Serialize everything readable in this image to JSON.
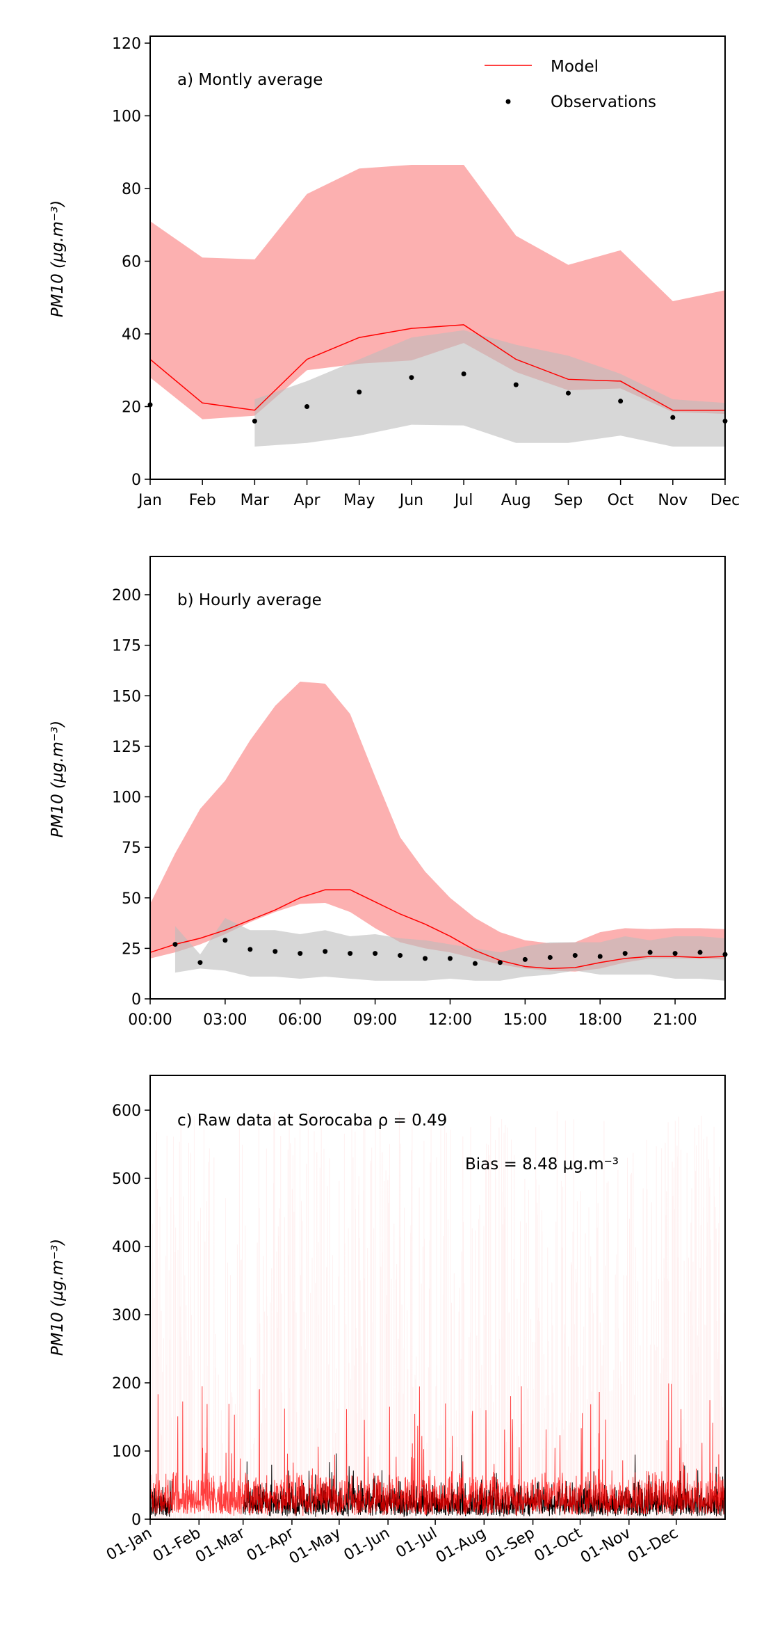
{
  "chart_data": [
    {
      "type": "line",
      "annotation": "a) Montly average",
      "ylabel": "PM10 (µg.m⁻³)",
      "ylim": [
        0,
        120
      ],
      "yticks": [
        0,
        20,
        40,
        60,
        80,
        100,
        120
      ],
      "categories": [
        "Jan",
        "Feb",
        "Mar",
        "Apr",
        "May",
        "Jun",
        "Jul",
        "Aug",
        "Sep",
        "Oct",
        "Nov",
        "Dec"
      ],
      "legend": {
        "position": "top-right",
        "entries": [
          "Model",
          "Observations"
        ]
      },
      "model": [
        33,
        21,
        19,
        33,
        39,
        41.5,
        42.5,
        33,
        27.5,
        27,
        19,
        19
      ],
      "model_band_upper": [
        71,
        61,
        60.5,
        78.5,
        85.5,
        86.5,
        86.5,
        67,
        59,
        63,
        49,
        52
      ],
      "model_band_lower": [
        28,
        16.5,
        17.5,
        30,
        31.8,
        32.7,
        37.5,
        29.5,
        24.5,
        25,
        18.5,
        18
      ],
      "observations": [
        20.5,
        null,
        16,
        20,
        24,
        28,
        29,
        26,
        23.7,
        21.5,
        17,
        16
      ],
      "obs_band_upper": [
        null,
        null,
        22,
        27,
        33,
        39,
        41,
        37,
        34,
        29,
        22,
        21
      ],
      "obs_band_lower": [
        null,
        null,
        9,
        10,
        12,
        15,
        14.8,
        10,
        10,
        12,
        9,
        9
      ],
      "colors": {
        "model": "#ff0000",
        "model_band": "#fdb0b0",
        "obs": "#000000",
        "obs_band": "#d9d9d9"
      }
    },
    {
      "type": "line",
      "annotation": "b) Hourly average",
      "ylabel": "PM10 (µg.m⁻³)",
      "ylim": [
        0,
        220
      ],
      "yticks": [
        0,
        25,
        50,
        75,
        100,
        125,
        150,
        175,
        200
      ],
      "xlim": [
        0,
        23
      ],
      "xticks": [
        0,
        3,
        6,
        9,
        12,
        15,
        18,
        21
      ],
      "xticklabels": [
        "00:00",
        "03:00",
        "06:00",
        "09:00",
        "12:00",
        "15:00",
        "18:00",
        "21:00"
      ],
      "hours": [
        0,
        1,
        2,
        3,
        4,
        5,
        6,
        7,
        8,
        9,
        10,
        11,
        12,
        13,
        14,
        15,
        16,
        17,
        18,
        19,
        20,
        21,
        22,
        23
      ],
      "model": [
        23,
        27,
        30,
        34,
        39,
        44,
        50,
        54,
        54,
        48,
        42,
        37,
        31,
        24,
        19,
        16,
        15,
        15.5,
        18,
        20,
        21,
        21,
        20.5,
        21
      ],
      "model_band_upper": [
        47,
        72,
        94,
        108,
        128,
        145,
        157,
        156,
        141,
        110,
        80,
        63,
        50,
        40,
        33,
        29,
        27.5,
        28,
        33,
        35,
        34.5,
        35,
        35,
        34.5
      ],
      "model_band_lower": [
        20,
        23,
        27,
        32,
        38,
        43,
        47,
        47.5,
        43,
        35,
        28,
        25,
        23,
        20,
        17,
        15,
        14,
        13.5,
        15,
        18,
        20,
        20,
        20,
        19.5
      ],
      "observations": [
        null,
        27,
        18,
        29,
        24.5,
        23.5,
        22.5,
        23.5,
        22.5,
        22.5,
        21.5,
        20,
        20,
        17.5,
        18,
        19.5,
        20.5,
        21.5,
        21,
        22.5,
        23,
        22.5,
        23,
        22
      ],
      "obs_band_upper": [
        null,
        36,
        22,
        40,
        34,
        34,
        32,
        34,
        31,
        32,
        30,
        29,
        27,
        25,
        23,
        26,
        28,
        28,
        28,
        31,
        29,
        31,
        31,
        30
      ],
      "obs_band_lower": [
        null,
        13,
        15,
        14,
        11,
        11,
        10,
        11,
        10,
        9,
        9,
        9,
        10,
        9,
        9,
        11,
        12,
        14,
        12,
        12,
        12,
        10,
        10,
        9
      ]
    },
    {
      "type": "line",
      "annotation": "c) Raw data at Sorocaba ρ = 0.49",
      "bias_label": "Bias = 8.48 µg.m⁻³",
      "ylabel": "PM10 (µg.m⁻³)",
      "ylim": [
        0,
        650
      ],
      "yticks": [
        0,
        100,
        200,
        300,
        400,
        500,
        600
      ],
      "xticklabels": [
        "01-Jan",
        "01-Feb",
        "01-Mar",
        "01-Apr",
        "01-May",
        "01-Jun",
        "01-Jul",
        "01-Aug",
        "01-Sep",
        "01-Oct",
        "01-Nov",
        "01-Dec"
      ],
      "xtick_days": [
        0,
        31,
        59,
        90,
        120,
        151,
        181,
        212,
        243,
        273,
        304,
        334
      ],
      "xlim_days": [
        0,
        365
      ],
      "obs_missing_period": [
        "15-Jan",
        "01-Mar"
      ]
    }
  ]
}
